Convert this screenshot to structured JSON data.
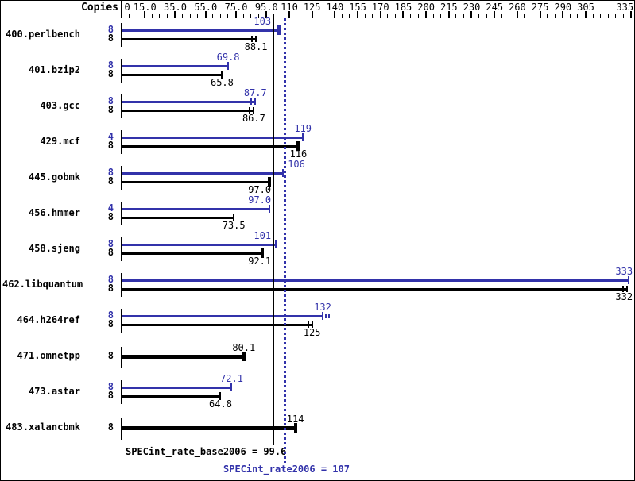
{
  "chart_data": {
    "type": "bar",
    "orientation": "horizontal",
    "copies_header": "Copies",
    "xlim": [
      0,
      337
    ],
    "axis_tick_step": 5,
    "axis_labels": [
      {
        "value": 0,
        "text": "0"
      },
      {
        "value": 15,
        "text": "15.0"
      },
      {
        "value": 35,
        "text": "35.0"
      },
      {
        "value": 55,
        "text": "55.0"
      },
      {
        "value": 75,
        "text": "75.0"
      },
      {
        "value": 95,
        "text": "95.0"
      },
      {
        "value": 110,
        "text": "110"
      },
      {
        "value": 125,
        "text": "125"
      },
      {
        "value": 140,
        "text": "140"
      },
      {
        "value": 155,
        "text": "155"
      },
      {
        "value": 170,
        "text": "170"
      },
      {
        "value": 185,
        "text": "185"
      },
      {
        "value": 200,
        "text": "200"
      },
      {
        "value": 215,
        "text": "215"
      },
      {
        "value": 230,
        "text": "230"
      },
      {
        "value": 245,
        "text": "245"
      },
      {
        "value": 260,
        "text": "260"
      },
      {
        "value": 275,
        "text": "275"
      },
      {
        "value": 290,
        "text": "290"
      },
      {
        "value": 305,
        "text": "305"
      },
      {
        "value": 335,
        "text": "335"
      }
    ],
    "series_colors": {
      "peak": "#3232aa",
      "base": "#000000"
    },
    "benchmarks": [
      {
        "name": "400.perlbench",
        "bars": [
          {
            "series": "peak",
            "copies": "8",
            "value": 103,
            "label": "103",
            "marker": "cap"
          },
          {
            "series": "base",
            "copies": "8",
            "value": 88.1,
            "label": "88.1",
            "marker": "double"
          }
        ]
      },
      {
        "name": "401.bzip2",
        "bars": [
          {
            "series": "peak",
            "copies": "8",
            "value": 69.8,
            "label": "69.8",
            "marker": "tick"
          },
          {
            "series": "base",
            "copies": "8",
            "value": 65.8,
            "label": "65.8",
            "marker": "tick"
          }
        ]
      },
      {
        "name": "403.gcc",
        "bars": [
          {
            "series": "peak",
            "copies": "8",
            "value": 87.7,
            "label": "87.7",
            "marker": "double"
          },
          {
            "series": "base",
            "copies": "8",
            "value": 86.7,
            "label": "86.7",
            "marker": "double"
          }
        ]
      },
      {
        "name": "429.mcf",
        "bars": [
          {
            "series": "peak",
            "copies": "4",
            "value": 119,
            "label": "119",
            "marker": "tick"
          },
          {
            "series": "base",
            "copies": "8",
            "value": 116,
            "label": "116",
            "marker": "cap"
          }
        ]
      },
      {
        "name": "445.gobmk",
        "bars": [
          {
            "series": "peak",
            "copies": "8",
            "value": 106,
            "label": "106",
            "marker": "tick"
          },
          {
            "series": "base",
            "copies": "8",
            "value": 97.0,
            "label": "97.0",
            "marker": "cap"
          }
        ]
      },
      {
        "name": "456.hmmer",
        "bars": [
          {
            "series": "peak",
            "copies": "4",
            "value": 97.0,
            "label": "97.0",
            "marker": "tick"
          },
          {
            "series": "base",
            "copies": "8",
            "value": 73.5,
            "label": "73.5",
            "marker": "tick"
          }
        ]
      },
      {
        "name": "458.sjeng",
        "bars": [
          {
            "series": "peak",
            "copies": "8",
            "value": 101,
            "label": "101",
            "marker": "tick"
          },
          {
            "series": "base",
            "copies": "8",
            "value": 92.1,
            "label": "92.1",
            "marker": "cap"
          }
        ]
      },
      {
        "name": "462.libquantum",
        "bars": [
          {
            "series": "peak",
            "copies": "8",
            "value": 333,
            "label": "333",
            "marker": "tick"
          },
          {
            "series": "base",
            "copies": "8",
            "value": 332,
            "label": "332",
            "marker": "double"
          }
        ]
      },
      {
        "name": "464.h264ref",
        "bars": [
          {
            "series": "peak",
            "copies": "8",
            "value": 132,
            "label": "132",
            "marker": "plus"
          },
          {
            "series": "base",
            "copies": "8",
            "value": 125,
            "label": "125",
            "marker": "double"
          }
        ]
      },
      {
        "name": "471.omnetpp",
        "bars": [
          {
            "series": "base",
            "copies": "8",
            "value": 80.1,
            "label": "80.1",
            "marker": "cap",
            "thick": true
          }
        ]
      },
      {
        "name": "473.astar",
        "bars": [
          {
            "series": "peak",
            "copies": "8",
            "value": 72.1,
            "label": "72.1",
            "marker": "tick"
          },
          {
            "series": "base",
            "copies": "8",
            "value": 64.8,
            "label": "64.8",
            "marker": "tick"
          }
        ]
      },
      {
        "name": "483.xalancbmk",
        "bars": [
          {
            "series": "base",
            "copies": "8",
            "value": 114,
            "label": "114",
            "marker": "cap",
            "thick": true
          }
        ]
      }
    ],
    "reference_lines": [
      {
        "series": "base",
        "value": 99.6,
        "style": "solid",
        "color": "#000000",
        "label": "SPECint_rate_base2006 = 99.6"
      },
      {
        "series": "peak",
        "value": 107,
        "style": "dotted",
        "color": "#3232aa",
        "label": "SPECint_rate2006 = 107"
      }
    ]
  }
}
